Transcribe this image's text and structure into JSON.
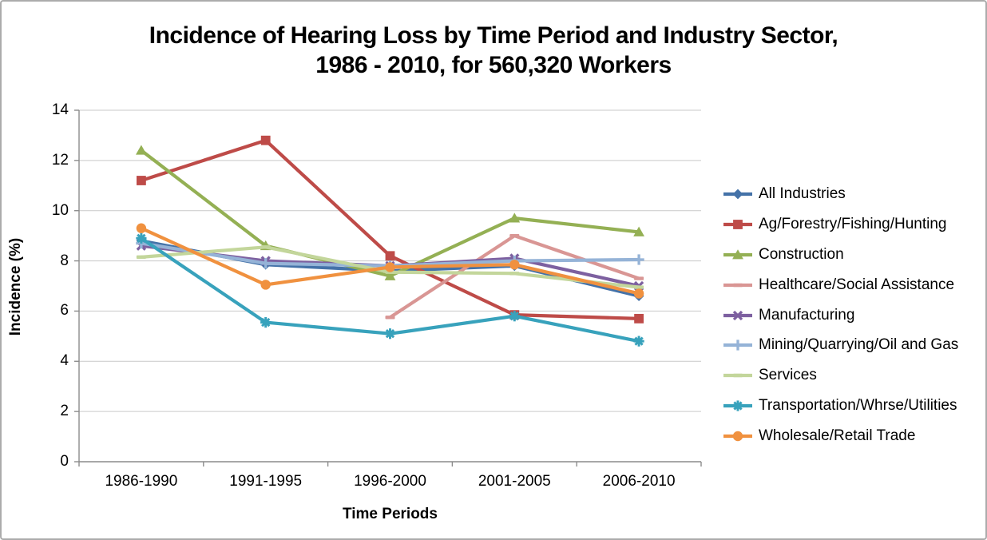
{
  "chart": {
    "title_line1": "Incidence of Hearing Loss by Time Period and Industry Sector,",
    "title_line2": "1986 - 2010, for 560,320 Workers"
  },
  "chart_data": {
    "type": "line",
    "title": "Incidence of Hearing Loss by Time Period and Industry Sector, 1986 - 2010, for 560,320 Workers",
    "xlabel": "Time Periods",
    "ylabel": "Incidence (%)",
    "categories": [
      "1986-1990",
      "1991-1995",
      "1996-2000",
      "2001-2005",
      "2006-2010"
    ],
    "ylim": [
      0,
      14
    ],
    "ytick_interval": 2,
    "grid": true,
    "legend_position": "right",
    "series": [
      {
        "name": "All Industries",
        "color": "#4472A8",
        "marker": "diamond",
        "values": [
          8.8,
          7.85,
          7.6,
          7.8,
          6.6
        ]
      },
      {
        "name": "Ag/Forestry/Fishing/Hunting",
        "color": "#BE4B48",
        "marker": "square",
        "values": [
          11.2,
          12.8,
          8.2,
          5.85,
          5.7
        ]
      },
      {
        "name": "Construction",
        "color": "#94B054",
        "marker": "triangle",
        "values": [
          12.4,
          8.6,
          7.4,
          9.7,
          9.15
        ]
      },
      {
        "name": "Healthcare/Social Assistance",
        "color": "#D99694",
        "marker": "dash",
        "values": [
          null,
          null,
          5.75,
          9.0,
          7.3
        ]
      },
      {
        "name": "Manufacturing",
        "color": "#7D60A0",
        "marker": "x",
        "values": [
          8.6,
          8.0,
          7.8,
          8.1,
          7.0
        ]
      },
      {
        "name": "Mining/Quarrying/Oil and Gas",
        "color": "#95B3D7",
        "marker": "plus",
        "values": [
          8.7,
          7.9,
          7.8,
          8.0,
          8.05
        ]
      },
      {
        "name": "Services",
        "color": "#C3D69B",
        "marker": "dash",
        "values": [
          8.15,
          8.55,
          7.55,
          7.5,
          6.95
        ]
      },
      {
        "name": "Transportation/Whrse/Utilities",
        "color": "#38A2BC",
        "marker": "asterisk",
        "values": [
          8.9,
          5.55,
          5.1,
          5.8,
          4.8
        ]
      },
      {
        "name": "Wholesale/Retail Trade",
        "color": "#F0913F",
        "marker": "circle",
        "values": [
          9.3,
          7.05,
          7.75,
          7.85,
          6.7
        ]
      }
    ]
  },
  "style_colors": {
    "gridline": "#C9C9C9",
    "axis": "#8C8C8C",
    "chart_border": "#ACACAC",
    "text": "#000000"
  }
}
